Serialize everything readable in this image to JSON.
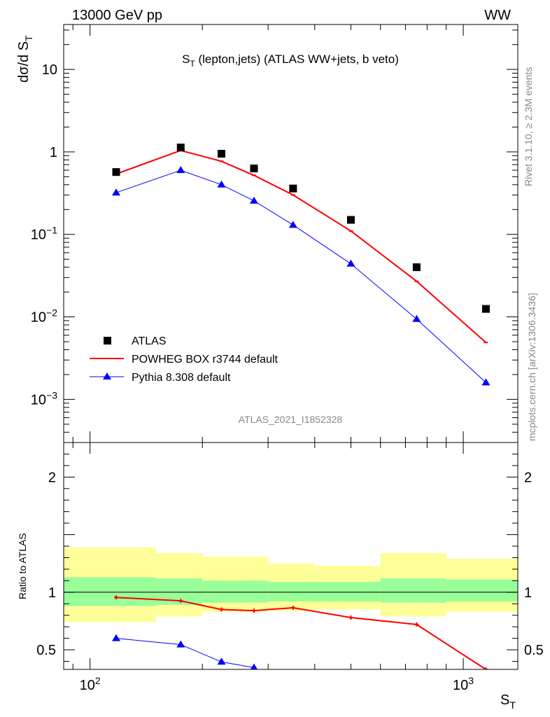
{
  "header": {
    "left": "13000 GeV pp",
    "right": "WW"
  },
  "side_labels": {
    "rivet": "Rivet 3.1.10, ≥ 2.3M events",
    "mcplots": "mcplots.cern.ch [arXiv:1306.3436]"
  },
  "watermark": "ATLAS_2021_I1852328",
  "colors": {
    "atlas": "#000000",
    "powheg": "#ff0000",
    "pythia": "#0000ff",
    "band_inner": "#99ff99",
    "band_outer": "#ffff99"
  },
  "chart_data": [
    {
      "type": "scatter",
      "title": "S_T (lepton,jets) (ATLAS WW+jets, b veto)",
      "title_parts": {
        "main": "S",
        "sub": "T",
        "rest": " (lepton,jets) (ATLAS WW+jets, b veto)"
      },
      "ylabel": "dσ/d S_T",
      "ylabel_parts": {
        "main": "dσ/d S",
        "sub": "T"
      },
      "xscale": "log",
      "yscale": "log",
      "xlim": [
        85,
        1400
      ],
      "ylim": [
        0.0003,
        35
      ],
      "y_ticks": [
        {
          "value": 10,
          "label": "10"
        },
        {
          "value": 1,
          "label": "1"
        },
        {
          "value": 0.1,
          "base": "10",
          "exp": "−1"
        },
        {
          "value": 0.01,
          "base": "10",
          "exp": "−2"
        },
        {
          "value": 0.001,
          "base": "10",
          "exp": "−3"
        }
      ],
      "legend_position": "bottom-left",
      "series": [
        {
          "name": "ATLAS",
          "style": "markers-square",
          "x": [
            117.5,
            175,
            225,
            275,
            350,
            500,
            750,
            1150
          ],
          "y": [
            0.57,
            1.13,
            0.95,
            0.63,
            0.36,
            0.15,
            0.04,
            0.0125
          ]
        },
        {
          "name": "POWHEG BOX r3744 default",
          "style": "line",
          "x": [
            117.5,
            175,
            225,
            275,
            350,
            500,
            750,
            1150
          ],
          "y": [
            0.54,
            1.04,
            0.77,
            0.52,
            0.3,
            0.11,
            0.027,
            0.0049
          ]
        },
        {
          "name": "Pythia 8.308 default",
          "style": "line-triangles",
          "x": [
            117.5,
            175,
            225,
            275,
            350,
            500,
            750,
            1150
          ],
          "y": [
            0.32,
            0.6,
            0.4,
            0.255,
            0.13,
            0.044,
            0.0094,
            0.0016
          ]
        }
      ]
    },
    {
      "type": "line",
      "ylabel": "Ratio to ATLAS",
      "xlabel": "S_T",
      "xlabel_parts": {
        "main": "S",
        "sub": "T"
      },
      "xscale": "log",
      "xlim": [
        85,
        1400
      ],
      "ylim": [
        0.33,
        2.3
      ],
      "y_ticks": [
        {
          "value": 0.5,
          "label": "0.5"
        },
        {
          "value": 1,
          "label": "1"
        },
        {
          "value": 2,
          "label": "2"
        }
      ],
      "x_ticks": [
        {
          "value": 100,
          "base": "10",
          "exp": "2"
        },
        {
          "value": 1000,
          "base": "10",
          "exp": "3"
        }
      ],
      "bins": [
        {
          "x0": 85,
          "x1": 150,
          "inner": [
            0.88,
            1.13
          ],
          "outer": [
            0.74,
            1.39
          ]
        },
        {
          "x0": 150,
          "x1": 200,
          "inner": [
            0.89,
            1.12
          ],
          "outer": [
            0.79,
            1.34
          ]
        },
        {
          "x0": 200,
          "x1": 250,
          "inner": [
            0.91,
            1.1
          ],
          "outer": [
            0.83,
            1.31
          ]
        },
        {
          "x0": 250,
          "x1": 300,
          "inner": [
            0.91,
            1.1
          ],
          "outer": [
            0.83,
            1.31
          ]
        },
        {
          "x0": 300,
          "x1": 400,
          "inner": [
            0.92,
            1.09
          ],
          "outer": [
            0.84,
            1.25
          ]
        },
        {
          "x0": 400,
          "x1": 600,
          "inner": [
            0.92,
            1.09
          ],
          "outer": [
            0.85,
            1.23
          ]
        },
        {
          "x0": 600,
          "x1": 900,
          "inner": [
            0.91,
            1.12
          ],
          "outer": [
            0.79,
            1.34
          ]
        },
        {
          "x0": 900,
          "x1": 1400,
          "inner": [
            0.92,
            1.11
          ],
          "outer": [
            0.83,
            1.29
          ]
        }
      ],
      "series": [
        {
          "name": "POWHEG BOX r3744 default",
          "x": [
            117.5,
            175,
            225,
            275,
            350,
            500,
            750,
            1150
          ],
          "y": [
            0.955,
            0.925,
            0.85,
            0.84,
            0.865,
            0.78,
            0.72,
            0.33
          ]
        },
        {
          "name": "Pythia 8.308 default",
          "x": [
            117.5,
            175,
            225,
            275
          ],
          "y": [
            0.6,
            0.545,
            0.395,
            0.345
          ]
        }
      ]
    }
  ]
}
